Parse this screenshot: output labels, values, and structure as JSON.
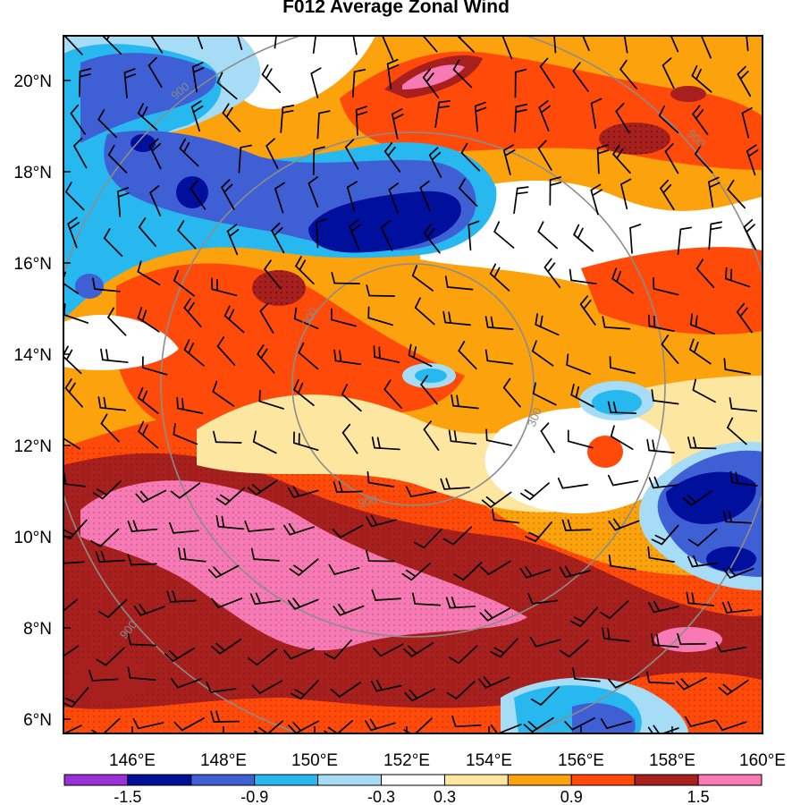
{
  "title": "F012 Average Zonal Wind",
  "colors": {
    "bins": [
      "#9a30d8",
      "#000f9c",
      "#3f5fd4",
      "#27b8f0",
      "#a6dcf5",
      "#ffffff",
      "#fde6a0",
      "#fca20c",
      "#ff4a0a",
      "#a8201e",
      "#f77ab4"
    ],
    "ring": "#8c8c8c",
    "frame": "#000000",
    "wind_barb": "#000000"
  },
  "x_axis": {
    "labels": [
      "146°E",
      "148°E",
      "150°E",
      "152°E",
      "154°E",
      "156°E",
      "158°E",
      "160°E"
    ]
  },
  "y_axis": {
    "labels": [
      "6°N",
      "8°N",
      "10°N",
      "12°N",
      "14°N",
      "16°N",
      "18°N",
      "20°N"
    ]
  },
  "range_rings": {
    "labels": [
      "300",
      "300",
      "300",
      "900",
      "900",
      "900"
    ]
  },
  "colorbar": {
    "labels": [
      "-1.5",
      "-0.9",
      "-0.3",
      "0.3",
      "0.9",
      "1.5"
    ]
  },
  "map_content": {
    "field": "average zonal wind (shaded)",
    "overlays": [
      "wind barbs",
      "range rings",
      "stippled contours"
    ]
  }
}
